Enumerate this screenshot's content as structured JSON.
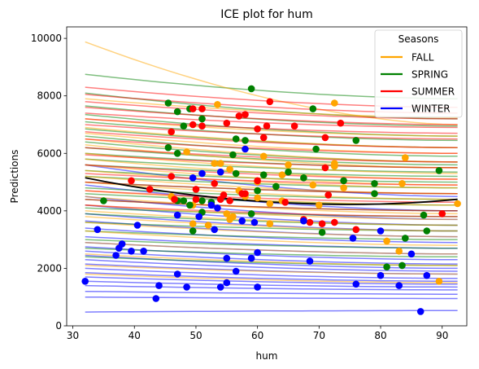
{
  "chart_data": {
    "type": "line",
    "title": "ICE plot for hum",
    "xlabel": "hum",
    "ylabel": "Predictions",
    "xlim": [
      29,
      94
    ],
    "ylim": [
      0,
      10400
    ],
    "x_ticks": [
      30,
      40,
      50,
      60,
      70,
      80,
      90
    ],
    "y_ticks": [
      0,
      2000,
      4000,
      6000,
      8000,
      10000
    ],
    "x_range": [
      32,
      92.5
    ],
    "grid": false,
    "legend": {
      "title": "Seasons",
      "placement": "top-right",
      "entries": [
        {
          "label": "FALL",
          "color": "#FFA500"
        },
        {
          "label": "SPRING",
          "color": "#008000"
        },
        {
          "label": "SUMMER",
          "color": "#FF0000"
        },
        {
          "label": "WINTER",
          "color": "#0000FF"
        }
      ]
    },
    "pd_curve": {
      "color": "#000000",
      "start": 5150,
      "end": 4400,
      "mid": 4450
    },
    "ice_curves": {
      "FALL": [
        {
          "start": 9880,
          "end": 7000
        },
        {
          "start": 7900,
          "end": 7250
        },
        {
          "start": 7200,
          "end": 6600
        },
        {
          "start": 6900,
          "end": 6200
        },
        {
          "start": 6700,
          "end": 6000
        },
        {
          "start": 6500,
          "end": 5700
        },
        {
          "start": 6300,
          "end": 5500
        },
        {
          "start": 6000,
          "end": 5300
        },
        {
          "start": 5800,
          "end": 5100
        },
        {
          "start": 5600,
          "end": 4900
        },
        {
          "start": 5400,
          "end": 4800
        },
        {
          "start": 5200,
          "end": 4600
        },
        {
          "start": 5000,
          "end": 4400
        },
        {
          "start": 4700,
          "end": 4200
        },
        {
          "start": 4500,
          "end": 3900
        },
        {
          "start": 4200,
          "end": 3700
        },
        {
          "start": 4000,
          "end": 3500
        },
        {
          "start": 3800,
          "end": 3300
        },
        {
          "start": 3600,
          "end": 3100
        },
        {
          "start": 3300,
          "end": 2800
        },
        {
          "start": 2900,
          "end": 2500
        },
        {
          "start": 2500,
          "end": 2100
        },
        {
          "start": 2100,
          "end": 1800
        },
        {
          "start": 1800,
          "end": 1500
        }
      ],
      "SPRING": [
        {
          "start": 8750,
          "end": 7900
        },
        {
          "start": 8100,
          "end": 7200
        },
        {
          "start": 7650,
          "end": 6950
        },
        {
          "start": 7350,
          "end": 6600
        },
        {
          "start": 7100,
          "end": 6450
        },
        {
          "start": 6850,
          "end": 6200
        },
        {
          "start": 6600,
          "end": 5900
        },
        {
          "start": 6400,
          "end": 5700
        },
        {
          "start": 6200,
          "end": 5600
        },
        {
          "start": 6000,
          "end": 5500
        },
        {
          "start": 5800,
          "end": 5350
        },
        {
          "start": 5600,
          "end": 5200
        },
        {
          "start": 5400,
          "end": 5000
        },
        {
          "start": 5200,
          "end": 4800
        },
        {
          "start": 5000,
          "end": 4600
        },
        {
          "start": 4800,
          "end": 4400
        },
        {
          "start": 4600,
          "end": 4200
        },
        {
          "start": 4400,
          "end": 4000
        },
        {
          "start": 4100,
          "end": 3800
        },
        {
          "start": 3900,
          "end": 3500
        },
        {
          "start": 3600,
          "end": 3300
        },
        {
          "start": 3300,
          "end": 3000
        },
        {
          "start": 3000,
          "end": 2700
        },
        {
          "start": 2700,
          "end": 2400
        },
        {
          "start": 2400,
          "end": 2100
        }
      ],
      "SUMMER": [
        {
          "start": 8300,
          "end": 7600
        },
        {
          "start": 8050,
          "end": 7400
        },
        {
          "start": 7800,
          "end": 7200
        },
        {
          "start": 7600,
          "end": 7000
        },
        {
          "start": 7400,
          "end": 6900
        },
        {
          "start": 7200,
          "end": 6700
        },
        {
          "start": 7000,
          "end": 6500
        },
        {
          "start": 6750,
          "end": 6200
        },
        {
          "start": 6500,
          "end": 6000
        },
        {
          "start": 6200,
          "end": 5700
        },
        {
          "start": 5950,
          "end": 5500
        },
        {
          "start": 5600,
          "end": 5100
        },
        {
          "start": 5300,
          "end": 4900
        },
        {
          "start": 5000,
          "end": 4600
        },
        {
          "start": 4700,
          "end": 4300
        },
        {
          "start": 4400,
          "end": 4000
        },
        {
          "start": 4200,
          "end": 3800
        }
      ],
      "WINTER": [
        {
          "start": 5600,
          "end": 4500
        },
        {
          "start": 4900,
          "end": 4000
        },
        {
          "start": 4500,
          "end": 3700
        },
        {
          "start": 4200,
          "end": 3500
        },
        {
          "start": 3900,
          "end": 3300
        },
        {
          "start": 3650,
          "end": 3100
        },
        {
          "start": 3400,
          "end": 2900
        },
        {
          "start": 3100,
          "end": 2700
        },
        {
          "start": 2900,
          "end": 2500
        },
        {
          "start": 2750,
          "end": 2300
        },
        {
          "start": 2600,
          "end": 2150
        },
        {
          "start": 2450,
          "end": 2000
        },
        {
          "start": 2300,
          "end": 1900
        },
        {
          "start": 2150,
          "end": 1800
        },
        {
          "start": 2000,
          "end": 1650
        },
        {
          "start": 1850,
          "end": 1550
        },
        {
          "start": 1700,
          "end": 1450
        },
        {
          "start": 1550,
          "end": 1350
        },
        {
          "start": 1400,
          "end": 1250
        },
        {
          "start": 1200,
          "end": 1100
        },
        {
          "start": 1000,
          "end": 950
        },
        {
          "start": 480,
          "end": 530
        }
      ]
    },
    "points": {
      "FALL": [
        [
          53.5,
          7700
        ],
        [
          72.5,
          7750
        ],
        [
          48.5,
          6050
        ],
        [
          61,
          5900
        ],
        [
          53,
          5650
        ],
        [
          54,
          5650
        ],
        [
          72.5,
          5650
        ],
        [
          72.5,
          5550
        ],
        [
          84,
          5850
        ],
        [
          55.5,
          5450
        ],
        [
          65,
          5600
        ],
        [
          64,
          5250
        ],
        [
          60,
          5000
        ],
        [
          69,
          4900
        ],
        [
          74,
          4800
        ],
        [
          57,
          4700
        ],
        [
          64,
          4350
        ],
        [
          58,
          4500
        ],
        [
          46,
          4500
        ],
        [
          60,
          4450
        ],
        [
          49.5,
          4200
        ],
        [
          62,
          4250
        ],
        [
          70,
          4200
        ],
        [
          55,
          3900
        ],
        [
          56,
          3800
        ],
        [
          62,
          3550
        ],
        [
          49.5,
          3550
        ],
        [
          52,
          3500
        ],
        [
          55.5,
          3700
        ],
        [
          83.5,
          4950
        ],
        [
          92.5,
          4250
        ],
        [
          81,
          2950
        ],
        [
          83,
          2600
        ],
        [
          89.5,
          1550
        ]
      ],
      "SPRING": [
        [
          45.5,
          7750
        ],
        [
          47,
          7450
        ],
        [
          49,
          7550
        ],
        [
          51,
          7200
        ],
        [
          48,
          6950
        ],
        [
          56.5,
          6500
        ],
        [
          59,
          8250
        ],
        [
          58,
          6450
        ],
        [
          69,
          7550
        ],
        [
          45.5,
          6200
        ],
        [
          47,
          6000
        ],
        [
          56,
          5950
        ],
        [
          61,
          5250
        ],
        [
          56.5,
          5300
        ],
        [
          65,
          5350
        ],
        [
          67.5,
          5150
        ],
        [
          74,
          5050
        ],
        [
          79,
          4950
        ],
        [
          89.5,
          5400
        ],
        [
          69.5,
          6150
        ],
        [
          76,
          6450
        ],
        [
          60,
          4700
        ],
        [
          63,
          4850
        ],
        [
          48,
          4350
        ],
        [
          47,
          4350
        ],
        [
          51,
          4350
        ],
        [
          49,
          4200
        ],
        [
          52.5,
          4300
        ],
        [
          59,
          3900
        ],
        [
          51,
          3950
        ],
        [
          49.5,
          3300
        ],
        [
          70.5,
          3250
        ],
        [
          79,
          4600
        ],
        [
          35,
          4350
        ],
        [
          84,
          3050
        ],
        [
          81,
          2050
        ],
        [
          83.5,
          2100
        ],
        [
          87,
          3850
        ],
        [
          87.5,
          3300
        ]
      ],
      "SUMMER": [
        [
          49.5,
          7550
        ],
        [
          51,
          7550
        ],
        [
          62,
          7800
        ],
        [
          58,
          7350
        ],
        [
          55,
          7050
        ],
        [
          57,
          7300
        ],
        [
          60,
          6850
        ],
        [
          61.5,
          6950
        ],
        [
          66,
          6950
        ],
        [
          51,
          6950
        ],
        [
          46,
          6750
        ],
        [
          49.5,
          7000
        ],
        [
          61,
          6550
        ],
        [
          71,
          6550
        ],
        [
          73.5,
          7050
        ],
        [
          71,
          5500
        ],
        [
          46,
          5200
        ],
        [
          53,
          4950
        ],
        [
          60,
          5050
        ],
        [
          39.5,
          5050
        ],
        [
          42.5,
          4750
        ],
        [
          50,
          4750
        ],
        [
          55.5,
          4350
        ],
        [
          54.5,
          4550
        ],
        [
          58,
          4600
        ],
        [
          64.5,
          4300
        ],
        [
          71.5,
          4550
        ],
        [
          46.5,
          4400
        ],
        [
          50,
          4400
        ],
        [
          54,
          4400
        ],
        [
          57.5,
          4600
        ],
        [
          72.5,
          3600
        ],
        [
          67.5,
          3700
        ],
        [
          68.5,
          3600
        ],
        [
          70.5,
          3550
        ],
        [
          76,
          3350
        ],
        [
          90,
          3900
        ]
      ],
      "WINTER": [
        [
          58,
          6150
        ],
        [
          54,
          5350
        ],
        [
          49.5,
          5150
        ],
        [
          51,
          5300
        ],
        [
          52.5,
          4200
        ],
        [
          53.5,
          4100
        ],
        [
          47,
          3850
        ],
        [
          50.5,
          3800
        ],
        [
          57.5,
          3650
        ],
        [
          59.5,
          3600
        ],
        [
          67.5,
          3650
        ],
        [
          53,
          3350
        ],
        [
          34,
          3350
        ],
        [
          40.5,
          3500
        ],
        [
          37.5,
          2700
        ],
        [
          38,
          2850
        ],
        [
          39.5,
          2600
        ],
        [
          41.5,
          2600
        ],
        [
          37,
          2450
        ],
        [
          55,
          2350
        ],
        [
          59,
          2350
        ],
        [
          60,
          2550
        ],
        [
          68.5,
          2250
        ],
        [
          56.5,
          1900
        ],
        [
          47,
          1800
        ],
        [
          32,
          1550
        ],
        [
          44,
          1400
        ],
        [
          48.5,
          1350
        ],
        [
          54,
          1350
        ],
        [
          55,
          1500
        ],
        [
          60,
          1350
        ],
        [
          75.5,
          3050
        ],
        [
          76,
          1450
        ],
        [
          80,
          1750
        ],
        [
          80,
          3300
        ],
        [
          83,
          1400
        ],
        [
          85,
          2500
        ],
        [
          86.5,
          500
        ],
        [
          87.5,
          1750
        ],
        [
          43.5,
          950
        ]
      ]
    }
  }
}
